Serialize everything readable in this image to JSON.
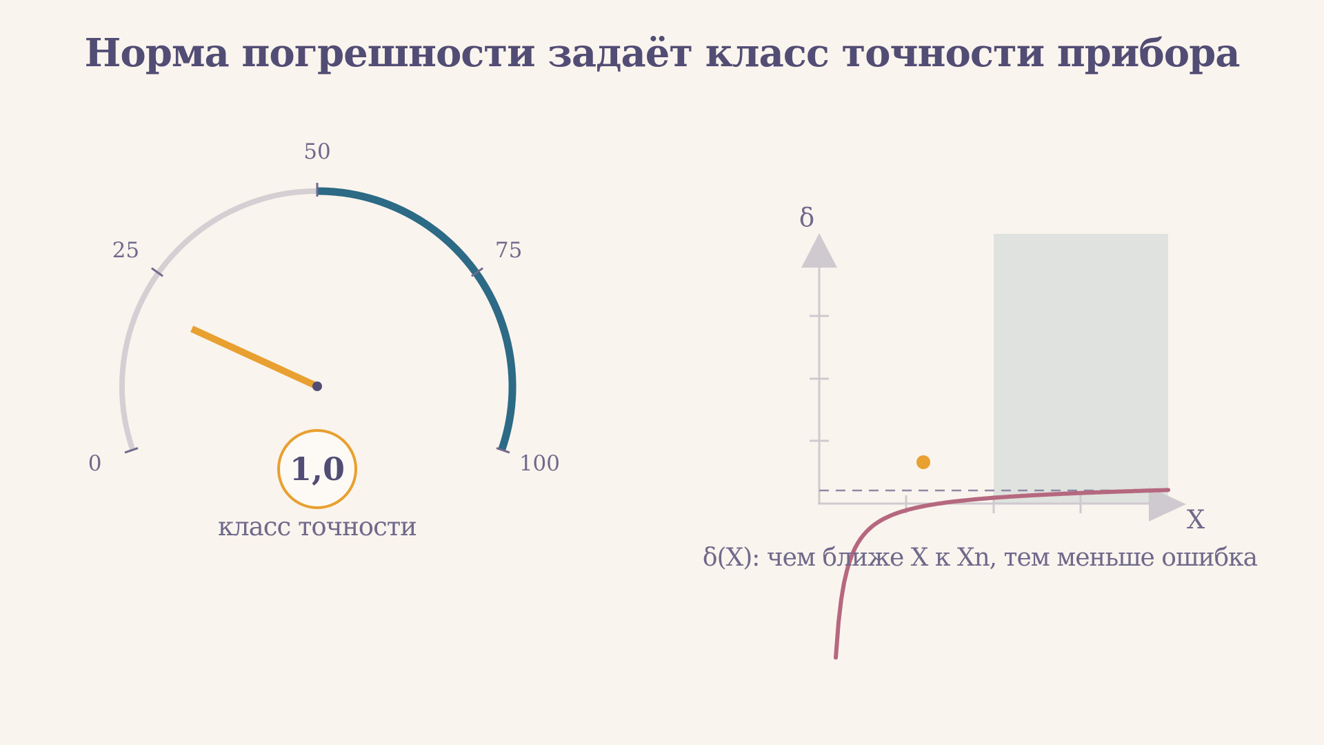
{
  "title": "Норма погрешности задаёт класс точности прибора",
  "gauge": {
    "scale_labels": [
      "0",
      "25",
      "50",
      "75",
      "100"
    ],
    "scale_min": 0,
    "scale_max": 100,
    "highlight_range": [
      50,
      100
    ],
    "pointer_value": 20,
    "class_value": "1,0",
    "class_caption": "класс точности",
    "colors": {
      "track": "#d4cfd3",
      "highlight": "#2c6a85",
      "pointer": "#e8a030",
      "hub": "#524d74",
      "ticks": "#6f6a8b"
    }
  },
  "curve": {
    "y_label": "δ",
    "x_label": "X",
    "caption": "δ(X): чем ближе X к Xn, тем меньше ошибка",
    "colors": {
      "curve": "#b5687f",
      "marker": "#e8a030",
      "zone": "#dfe2de",
      "axes": "#cfcacf",
      "asymptote": "#8f89a3"
    }
  }
}
